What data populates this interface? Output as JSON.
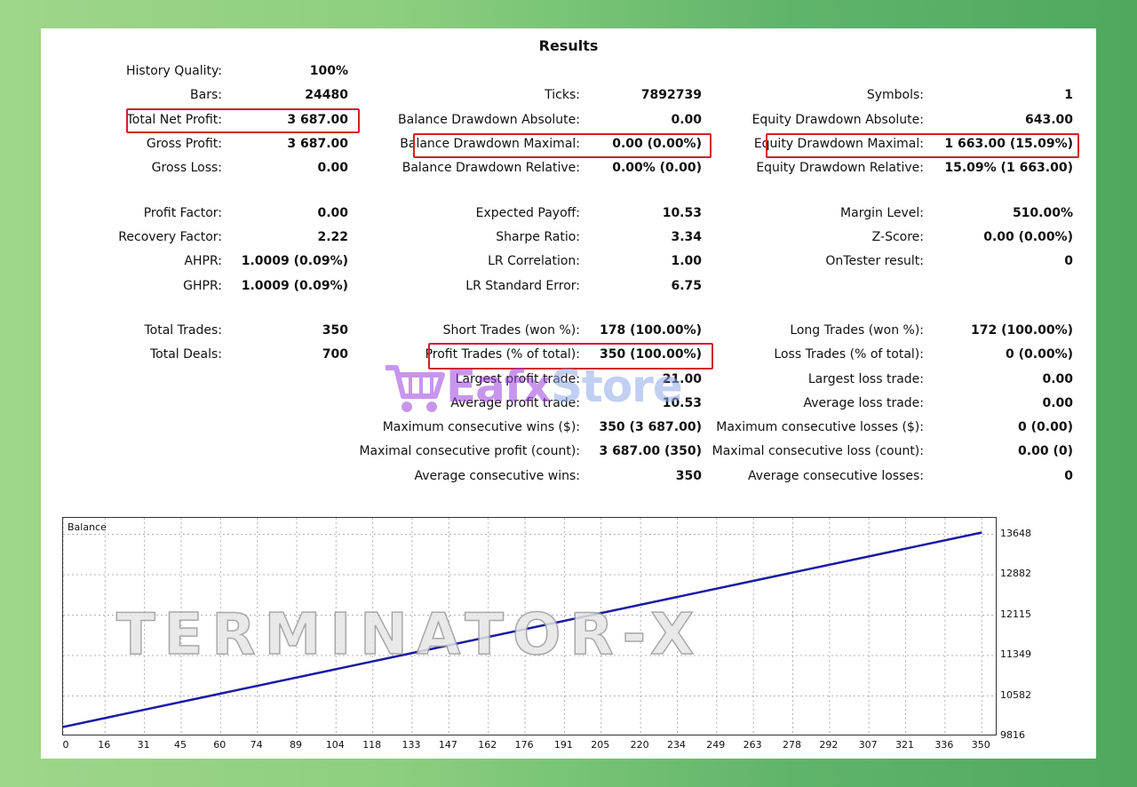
{
  "title": "Results",
  "col1": [
    {
      "label": "History Quality:",
      "value": "100%"
    },
    {
      "label": "Bars:",
      "value": "24480"
    },
    {
      "label": "Total Net Profit:",
      "value": "3 687.00"
    },
    {
      "label": "Gross Profit:",
      "value": "3 687.00"
    },
    {
      "label": "Gross Loss:",
      "value": "0.00"
    },
    {
      "label": "Profit Factor:",
      "value": "0.00"
    },
    {
      "label": "Recovery Factor:",
      "value": "2.22"
    },
    {
      "label": "AHPR:",
      "value": "1.0009 (0.09%)"
    },
    {
      "label": "GHPR:",
      "value": "1.0009 (0.09%)"
    },
    {
      "label": "Total Trades:",
      "value": "350"
    },
    {
      "label": "Total Deals:",
      "value": "700"
    }
  ],
  "col2": [
    {
      "label": "Ticks:",
      "value": "7892739"
    },
    {
      "label": "Balance Drawdown Absolute:",
      "value": "0.00"
    },
    {
      "label": "Balance Drawdown Maximal:",
      "value": "0.00 (0.00%)"
    },
    {
      "label": "Balance Drawdown Relative:",
      "value": "0.00% (0.00)"
    },
    {
      "label": "Expected Payoff:",
      "value": "10.53"
    },
    {
      "label": "Sharpe Ratio:",
      "value": "3.34"
    },
    {
      "label": "LR Correlation:",
      "value": "1.00"
    },
    {
      "label": "LR Standard Error:",
      "value": "6.75"
    },
    {
      "label": "Short Trades (won %):",
      "value": "178 (100.00%)"
    },
    {
      "label": "Profit Trades (% of total):",
      "value": "350 (100.00%)"
    },
    {
      "label": "Largest profit trade:",
      "value": "21.00"
    },
    {
      "label": "Average profit trade:",
      "value": "10.53"
    },
    {
      "label": "Maximum consecutive wins ($):",
      "value": "350 (3 687.00)"
    },
    {
      "label": "Maximal consecutive profit (count):",
      "value": "3 687.00 (350)"
    },
    {
      "label": "Average consecutive wins:",
      "value": "350"
    }
  ],
  "col3": [
    {
      "label": "Symbols:",
      "value": "1"
    },
    {
      "label": "Equity Drawdown Absolute:",
      "value": "643.00"
    },
    {
      "label": "Equity Drawdown Maximal:",
      "value": "1 663.00 (15.09%)"
    },
    {
      "label": "Equity Drawdown Relative:",
      "value": "15.09% (1 663.00)"
    },
    {
      "label": "Margin Level:",
      "value": "510.00%"
    },
    {
      "label": "Z-Score:",
      "value": "0.00 (0.00%)"
    },
    {
      "label": "OnTester result:",
      "value": "0"
    },
    {
      "label": "Long Trades (won %):",
      "value": "172 (100.00%)"
    },
    {
      "label": "Loss Trades (% of total):",
      "value": "0 (0.00%)"
    },
    {
      "label": "Largest loss trade:",
      "value": "0.00"
    },
    {
      "label": "Average loss trade:",
      "value": "0.00"
    },
    {
      "label": "Maximum consecutive losses ($):",
      "value": "0 (0.00)"
    },
    {
      "label": "Maximal consecutive loss (count):",
      "value": "0.00 (0)"
    },
    {
      "label": "Average consecutive losses:",
      "value": "0"
    }
  ],
  "watermark": {
    "store_a": "Eafx",
    "store_b": "Store",
    "chart_logo": "TERMINATOR-X"
  },
  "colors": {
    "highlight": "#d0202a",
    "balance_line": "#1a1aa6",
    "grid": "#b0b0b0"
  },
  "chart_data": {
    "type": "line",
    "title": "Balance",
    "x_ticks": [
      0,
      16,
      31,
      45,
      60,
      74,
      89,
      104,
      118,
      133,
      147,
      162,
      176,
      191,
      205,
      220,
      234,
      249,
      263,
      278,
      292,
      307,
      321,
      336,
      350
    ],
    "y_ticks": [
      9816,
      10582,
      11349,
      12115,
      12882,
      13648
    ],
    "xlim": [
      0,
      356
    ],
    "ylim": [
      9816,
      13960
    ],
    "series": [
      {
        "x": [
          0,
          350
        ],
        "y": [
          9995,
          13682
        ]
      }
    ]
  }
}
